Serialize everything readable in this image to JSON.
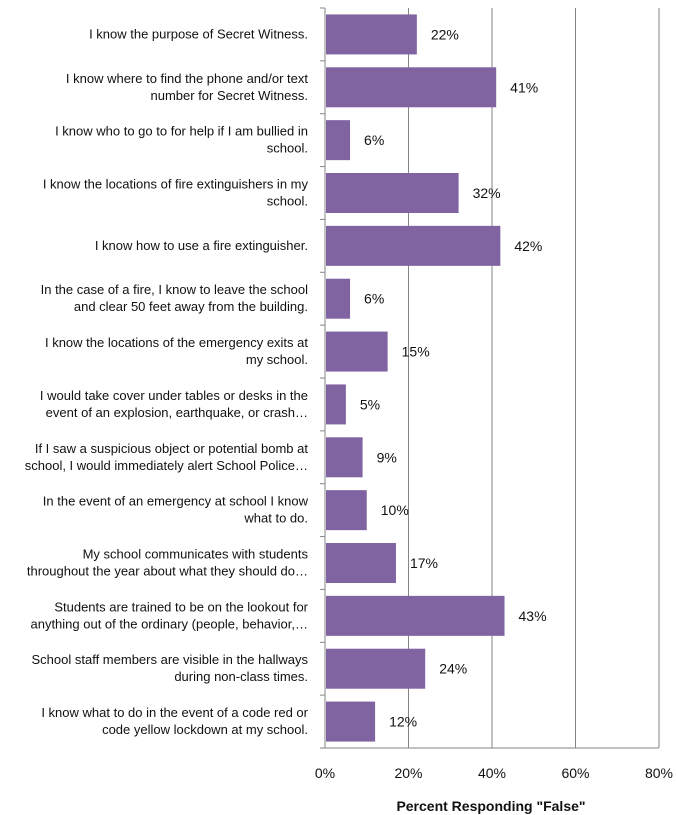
{
  "chart_data": {
    "type": "bar",
    "orientation": "horizontal",
    "categories": [
      "I know the purpose of Secret Witness.",
      "I know where to find the phone and/or text number for Secret Witness.",
      "I know who to go to for help if I am bullied in school.",
      "I know the locations of fire extinguishers in my school.",
      "I know how to use a fire extinguisher.",
      "In the case of a fire, I know to leave the school and clear 50 feet away from the building.",
      "I know the locations of the emergency exits at my school.",
      "I would take cover under tables or desks in the event of an explosion, earthquake, or crash…",
      "If I saw a suspicious object or potential bomb at school, I would immediately alert School Police…",
      "In the event of an emergency at school I know what to do.",
      "My school communicates with students throughout the year about what they should do…",
      "Students are trained to be on the lookout for anything out of the ordinary (people, behavior,…",
      "School staff members are visible in the hallways during non-class times.",
      "I know what to do in the event of a code red or code yellow lockdown at my school."
    ],
    "category_lines": [
      [
        "I know the purpose of Secret Witness."
      ],
      [
        "I know where to find the phone and/or text",
        "number for Secret Witness."
      ],
      [
        "I know who to go to for help if I am bullied in",
        "school."
      ],
      [
        "I know the locations of fire extinguishers in my",
        "school."
      ],
      [
        "I know how to use a fire extinguisher."
      ],
      [
        "In the case of a fire, I know to leave the school",
        "and clear 50 feet away from the building."
      ],
      [
        "I know the locations of the emergency exits at",
        "my school."
      ],
      [
        "I would take cover under tables or desks in the",
        "event of an explosion, earthquake, or crash…"
      ],
      [
        "If I saw a suspicious object or potential bomb at",
        "school, I would immediately alert School Police…"
      ],
      [
        "In the event of an emergency at school I know",
        "what to do."
      ],
      [
        "My school communicates with students",
        "throughout the year about what they should do…"
      ],
      [
        "Students are trained to be on the lookout for",
        "anything out of the ordinary (people, behavior,…"
      ],
      [
        "School staff members are visible in the hallways",
        "during non-class times."
      ],
      [
        "I know what to do in the event of a code red or",
        "code yellow lockdown at my school."
      ]
    ],
    "values": [
      22,
      41,
      6,
      32,
      42,
      6,
      15,
      5,
      9,
      10,
      17,
      43,
      24,
      12
    ],
    "data_labels": [
      "22%",
      "41%",
      "6%",
      "32%",
      "42%",
      "6%",
      "15%",
      "5%",
      "9%",
      "10%",
      "17%",
      "43%",
      "24%",
      "12%"
    ],
    "xlim": [
      0,
      80
    ],
    "xticks": [
      0,
      20,
      40,
      60,
      80
    ],
    "xtick_labels": [
      "0%",
      "20%",
      "40%",
      "60%",
      "80%"
    ],
    "xlabel": "Percent Responding \"False\"",
    "grid": true,
    "bar_color": "#8064a2",
    "gridline_color": "#868686"
  }
}
